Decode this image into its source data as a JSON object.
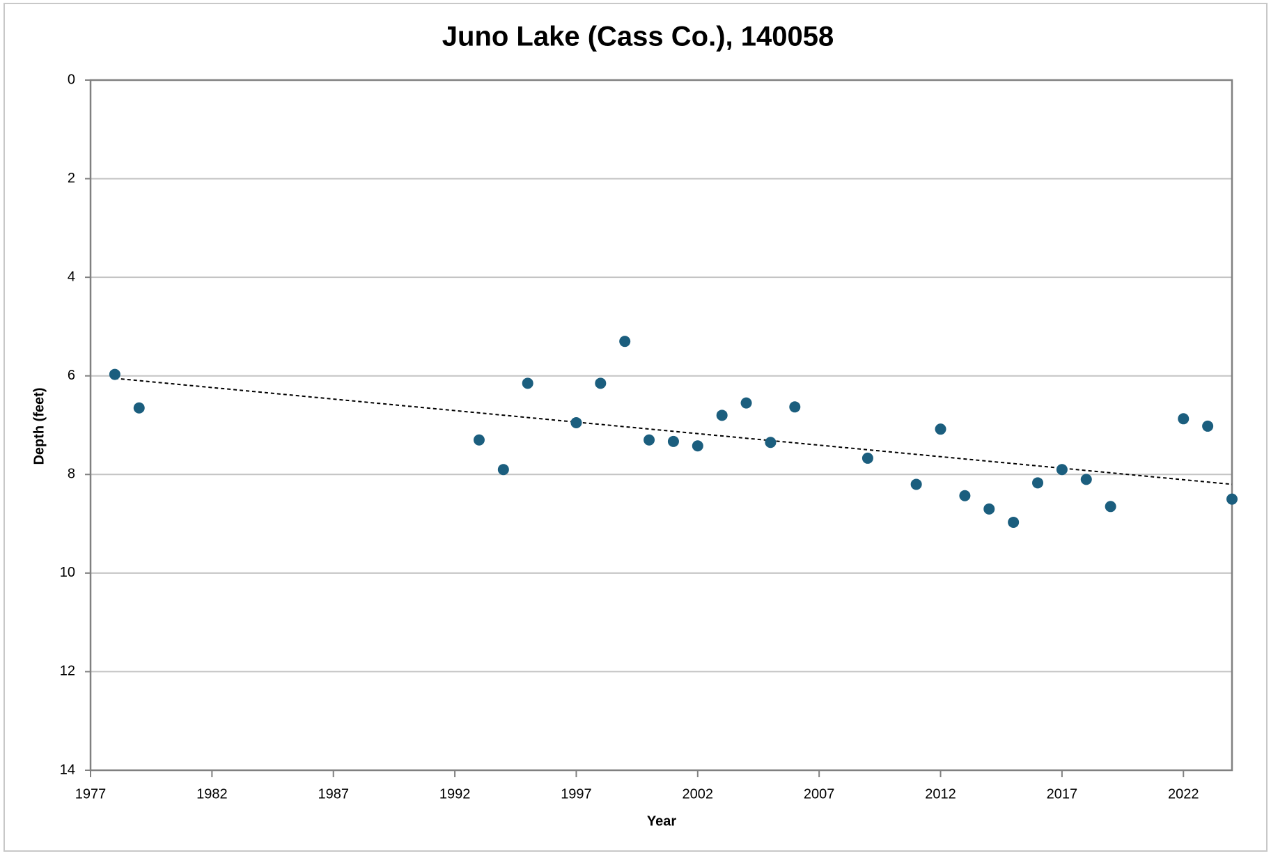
{
  "chart_data": {
    "type": "scatter",
    "title": "Juno Lake (Cass Co.), 140058",
    "x_label": "Year",
    "y_label": "Depth (feet)",
    "x": [
      1978,
      1979,
      1993,
      1994,
      1995,
      1997,
      1998,
      1999,
      2000,
      2001,
      2002,
      2003,
      2004,
      2005,
      2006,
      2009,
      2011,
      2012,
      2013,
      2014,
      2015,
      2016,
      2017,
      2018,
      2019,
      2022,
      2023,
      2024
    ],
    "values": [
      5.97,
      6.65,
      7.3,
      7.9,
      6.15,
      6.95,
      6.15,
      5.3,
      7.3,
      7.33,
      7.42,
      6.8,
      6.55,
      7.35,
      6.63,
      7.67,
      8.2,
      7.08,
      8.43,
      8.7,
      8.97,
      8.17,
      7.9,
      8.1,
      8.65,
      6.87,
      7.02,
      8.5
    ],
    "color": "#1b5e7e",
    "trend": {
      "x": [
        1978,
        2024
      ],
      "values": [
        6.05,
        8.2
      ],
      "color": "#000000"
    },
    "xlim": [
      1977,
      2024
    ],
    "xticks": [
      1977,
      1982,
      1987,
      1992,
      1997,
      2002,
      2007,
      2012,
      2017,
      2022
    ],
    "ylim": [
      0,
      14
    ],
    "yticks": [
      0,
      2,
      4,
      6,
      8,
      10,
      12,
      14
    ],
    "y_inverted": true,
    "grid": true
  }
}
